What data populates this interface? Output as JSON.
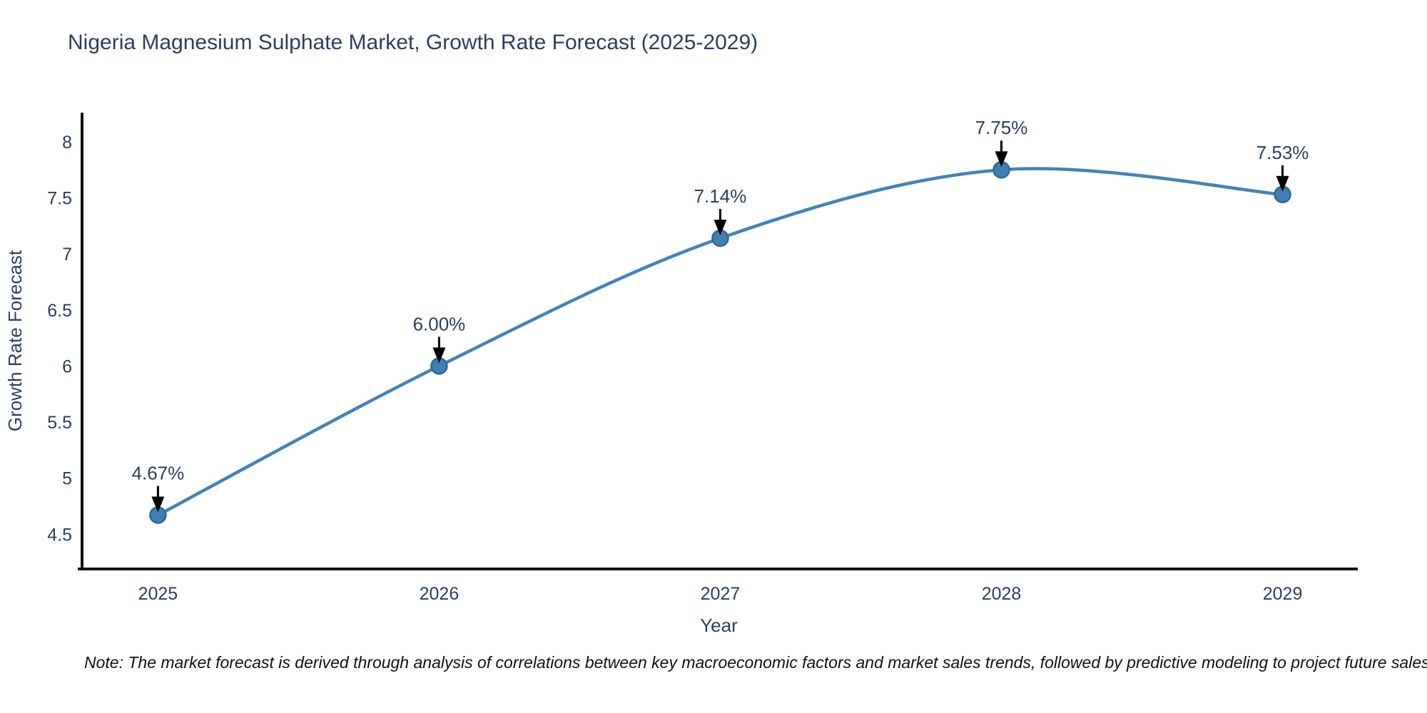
{
  "header": {
    "title": "Nigeria Magnesium Sulphate Market, Growth Rate Forecast (2025-2029)"
  },
  "chart_data": {
    "type": "line",
    "title": "Nigeria Magnesium Sulphate Market, Growth Rate Forecast (2025-2029)",
    "xlabel": "Year",
    "ylabel": "Growth Rate Forecast",
    "line_shape": "spline",
    "grid": false,
    "legend": false,
    "x": [
      2025,
      2026,
      2027,
      2028,
      2029
    ],
    "series": [
      {
        "name": "Growth Rate Forecast",
        "values": [
          4.67,
          6.0,
          7.14,
          7.75,
          7.53
        ],
        "point_labels": [
          "4.67%",
          "6.00%",
          "7.14%",
          "7.75%",
          "7.53%"
        ]
      }
    ],
    "xtick_labels": [
      "2025",
      "2026",
      "2027",
      "2028",
      "2029"
    ],
    "ytick_values": [
      4.5,
      5,
      5.5,
      6,
      6.5,
      7,
      7.5,
      8
    ],
    "ytick_labels": [
      "4.5",
      "5",
      "5.5",
      "6",
      "6.5",
      "7",
      "7.5",
      "8"
    ],
    "xlim": [
      2024.73,
      2029.26
    ],
    "ylim": [
      4.19,
      8.26
    ],
    "colors": {
      "line": "#4283b8",
      "marker_fill": "#3f7fb4",
      "marker_edge": "#2e6698",
      "axis_line": "#111111",
      "chart_text": "#2a3f5f",
      "annotation_text": "#2a3f5f",
      "annotation_arrow": "#000000",
      "background": "#ffffff"
    }
  },
  "footnote": {
    "text": "Note: The market forecast is derived through analysis of correlations between key macroeconomic factors and market sales trends, followed by predictive modeling to project future sales"
  }
}
